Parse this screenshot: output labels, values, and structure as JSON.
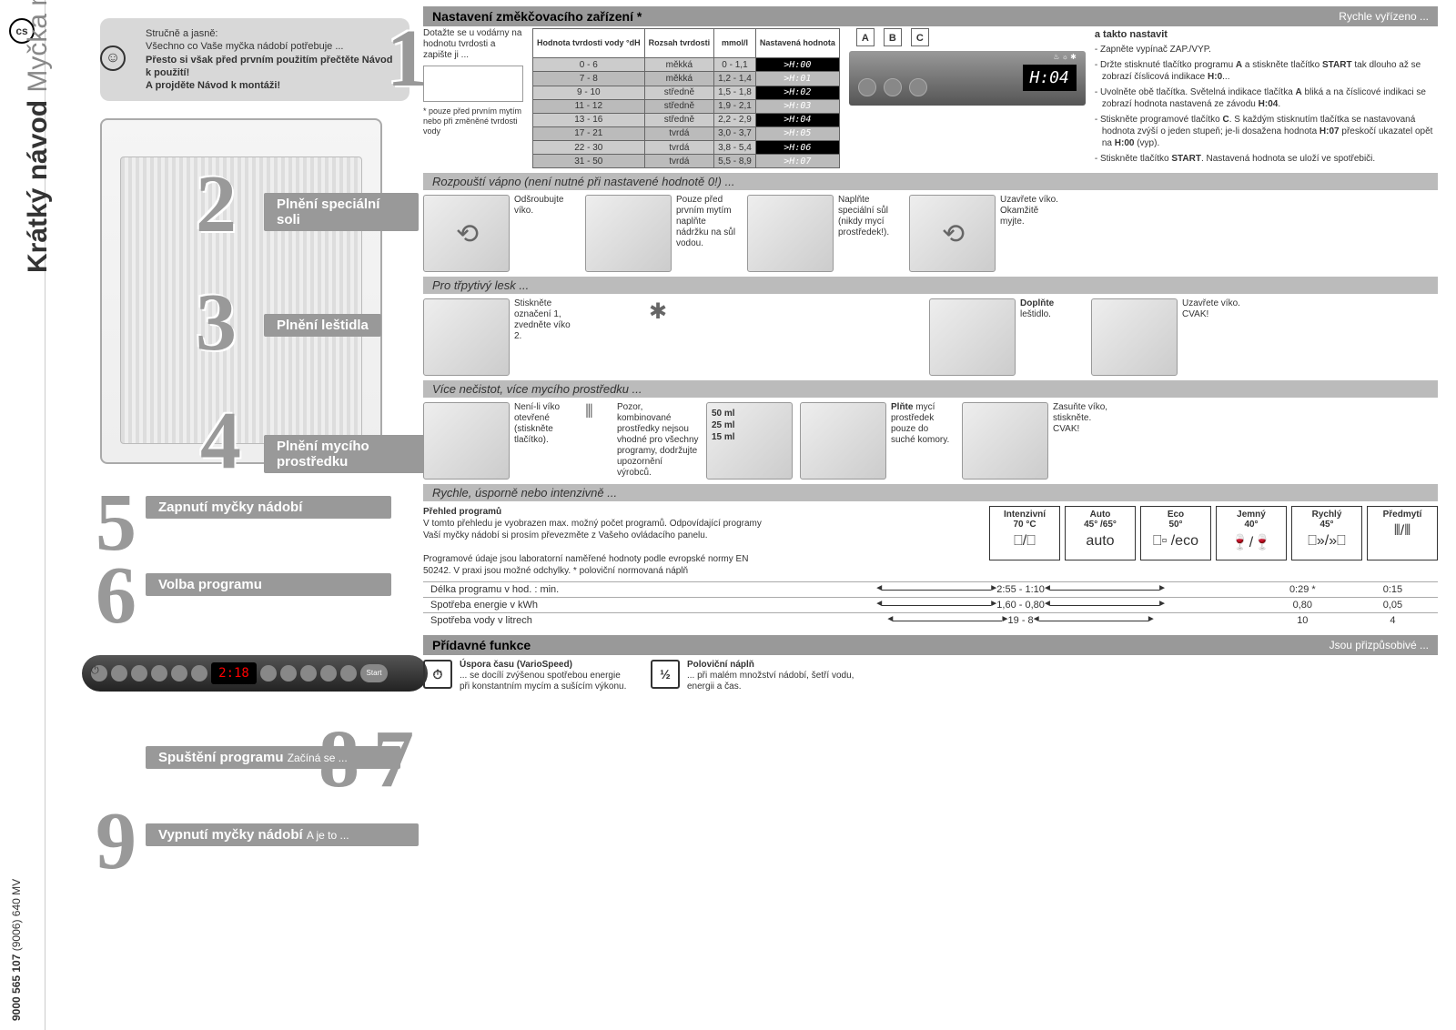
{
  "lang_code": "cs",
  "doc_number": "9000 565 107",
  "doc_suffix": "(9006) 640 MV",
  "title_bold": "Krátký návod",
  "title_light": "Myčka nádobí",
  "intro": {
    "l1": "Stručně a jasně:",
    "l2": "Všechno co Vaše myčka nádobí potřebuje ...",
    "l3": "Přesto si však před prvním použitím přečtěte Návod k použití!",
    "l4": "A projděte Návod k montáži!"
  },
  "sections": {
    "s1": {
      "title": "Nastavení změkčovacího zařízení *",
      "tail": "Rychle vyřízeno ..."
    },
    "s2": {
      "title": "Plnění speciální soli",
      "sub": "Rozpouští vápno (není nutné při nastavené hodnotě 0!) ..."
    },
    "s3": {
      "title": "Plnění leštidla",
      "sub": "Pro třpytivý lesk ..."
    },
    "s4": {
      "title": "Plnění mycího prostředku",
      "sub": "Více nečistot, více mycího prostředku ..."
    },
    "s5": {
      "title": "Zapnutí myčky nádobí"
    },
    "s6": {
      "title": "Volba programu",
      "sub": "Rychle, úsporně nebo intenzivně ..."
    },
    "s7": {
      "title": "Spuštění programu",
      "sub": "Začíná se ..."
    },
    "s8": {
      "title": "Přídavné funkce",
      "tail": "Jsou přizpůsobivé ..."
    },
    "s9": {
      "title": "Vypnutí myčky nádobí",
      "sub": "A je to ..."
    }
  },
  "sec1": {
    "query": "Dotažte se u vodárny na hodnotu tvrdosti a zapište ji ...",
    "note": "* pouze před prvním mytím nebo při změněné tvrdosti vody",
    "th1": "Hodnota tvrdosti vody °dH",
    "th2": "Rozsah tvrdosti",
    "th3": "mmol/l",
    "th4": "Nastavená hodnota",
    "rows": [
      {
        "dh": "0 - 6",
        "r": "měkká",
        "m": "0 - 1,1",
        "h": "H:00"
      },
      {
        "dh": "7 - 8",
        "r": "měkká",
        "m": "1,2 - 1,4",
        "h": "H:01"
      },
      {
        "dh": "9 - 10",
        "r": "středně",
        "m": "1,5 - 1,8",
        "h": "H:02"
      },
      {
        "dh": "11 - 12",
        "r": "středně",
        "m": "1,9 - 2,1",
        "h": "H:03"
      },
      {
        "dh": "13 - 16",
        "r": "středně",
        "m": "2,2 - 2,9",
        "h": "H:04"
      },
      {
        "dh": "17 - 21",
        "r": "tvrdá",
        "m": "3,0 - 3,7",
        "h": "H:05"
      },
      {
        "dh": "22 - 30",
        "r": "tvrdá",
        "m": "3,8 - 5,4",
        "h": "H:06"
      },
      {
        "dh": "31 - 50",
        "r": "tvrdá",
        "m": "5,5 - 8,9",
        "h": "H:07"
      }
    ],
    "abc": [
      "A",
      "B",
      "C"
    ],
    "display_value": "H:04",
    "right_heading": "a takto nastavit",
    "instructions": [
      "Zapněte vypínač ZAP./VYP.",
      "Držte stisknuté tlačítko programu A a stiskněte tlačítko START tak dlouho až se zobrazí číslicová indikace H:0...",
      "Uvolněte obě tlačítka. Světelná indikace tlačítka A bliká a na číslicové indikaci se zobrazí hodnota nastavená ze závodu H:04.",
      "Stiskněte programové tlačítko C. S každým stisknutím tlačítka se nastavovaná hodnota zvýší o jeden stupeň; je-li dosažena hodnota H:07 přeskočí ukazatel opět na H:00 (vyp).",
      "Stiskněte tlačítko START. Nastavená hodnota se uloží ve spotřebiči."
    ]
  },
  "salt": {
    "c1": "Odšroubujte víko.",
    "c2": "Pouze před prvním mytím naplňte nádržku na sůl vodou.",
    "c3a": "Naplňte speciální sůl",
    "c3b": "(nikdy mycí prostředek!).",
    "c4": "Uzavřete víko. Okamžitě myjte."
  },
  "rinse": {
    "c1": "Stiskněte označení 1, zvedněte víko 2.",
    "c2a": "Doplňte",
    "c2b": "leštidlo.",
    "c3": "Uzavřete víko. CVAK!"
  },
  "detergent": {
    "c1": "Není-li víko otevřené (stiskněte tlačítko).",
    "c2": "Pozor, kombinované prostředky nejsou vhodné pro všechny programy, dodržujte upozornění výrobců.",
    "levels": [
      "50 ml",
      "25 ml",
      "15 ml"
    ],
    "c3a": "Plňte",
    "c3b": "mycí prostředek pouze do suché komory.",
    "c4": "Zasuňte víko, stiskněte. CVAK!"
  },
  "programs": {
    "overview_title": "Přehled programů",
    "overview_text": "V tomto přehledu je vyobrazen max. možný počet programů. Odpovídající programy Vaší myčky nádobí si prosím převezměte z Vašeho ovládacího panelu.",
    "note": "Programové údaje jsou laboratorní naměřené hodnoty podle evropské normy EN 50242. V praxi jsou možné odchylky. * poloviční normovaná náplň",
    "boxes": [
      {
        "name": "Intenzivní",
        "temp": "70 °C",
        "icon": "⎕/⎕"
      },
      {
        "name": "Auto",
        "temp": "45° /65°",
        "icon": "auto"
      },
      {
        "name": "Eco",
        "temp": "50°",
        "icon": "⎕▫ /eco"
      },
      {
        "name": "Jemný",
        "temp": "40°",
        "icon": "🍷/🍷"
      },
      {
        "name": "Rychlý",
        "temp": "45°",
        "icon": "⎕»/»⎕"
      },
      {
        "name": "Předmytí",
        "temp": "",
        "icon": "⦀/⦀"
      }
    ],
    "metrics": [
      {
        "label": "Délka programu v hod. : min.",
        "mid": "2:55 - 1:10",
        "v1": "0:29 *",
        "v2": "0:15"
      },
      {
        "label": "Spotřeba energie v kWh",
        "mid": "1,60 - 0,80",
        "v1": "0,80",
        "v2": "0,05"
      },
      {
        "label": "Spotřeba vody v litrech",
        "mid": "19 - 8",
        "v1": "10",
        "v2": "4"
      }
    ]
  },
  "addons": {
    "a1_title": "Úspora času (VarioSpeed)",
    "a1_text": "... se docílí zvýšenou spotřebou energie při konstantním mycím a sušícím výkonu.",
    "a2_title": "Poloviční náplň",
    "a2_text": "... při malém množství nádobí, šetří vodu, energii a čas.",
    "a2_icon": "½"
  },
  "cp_display": "2:18",
  "cp_start": "Start"
}
